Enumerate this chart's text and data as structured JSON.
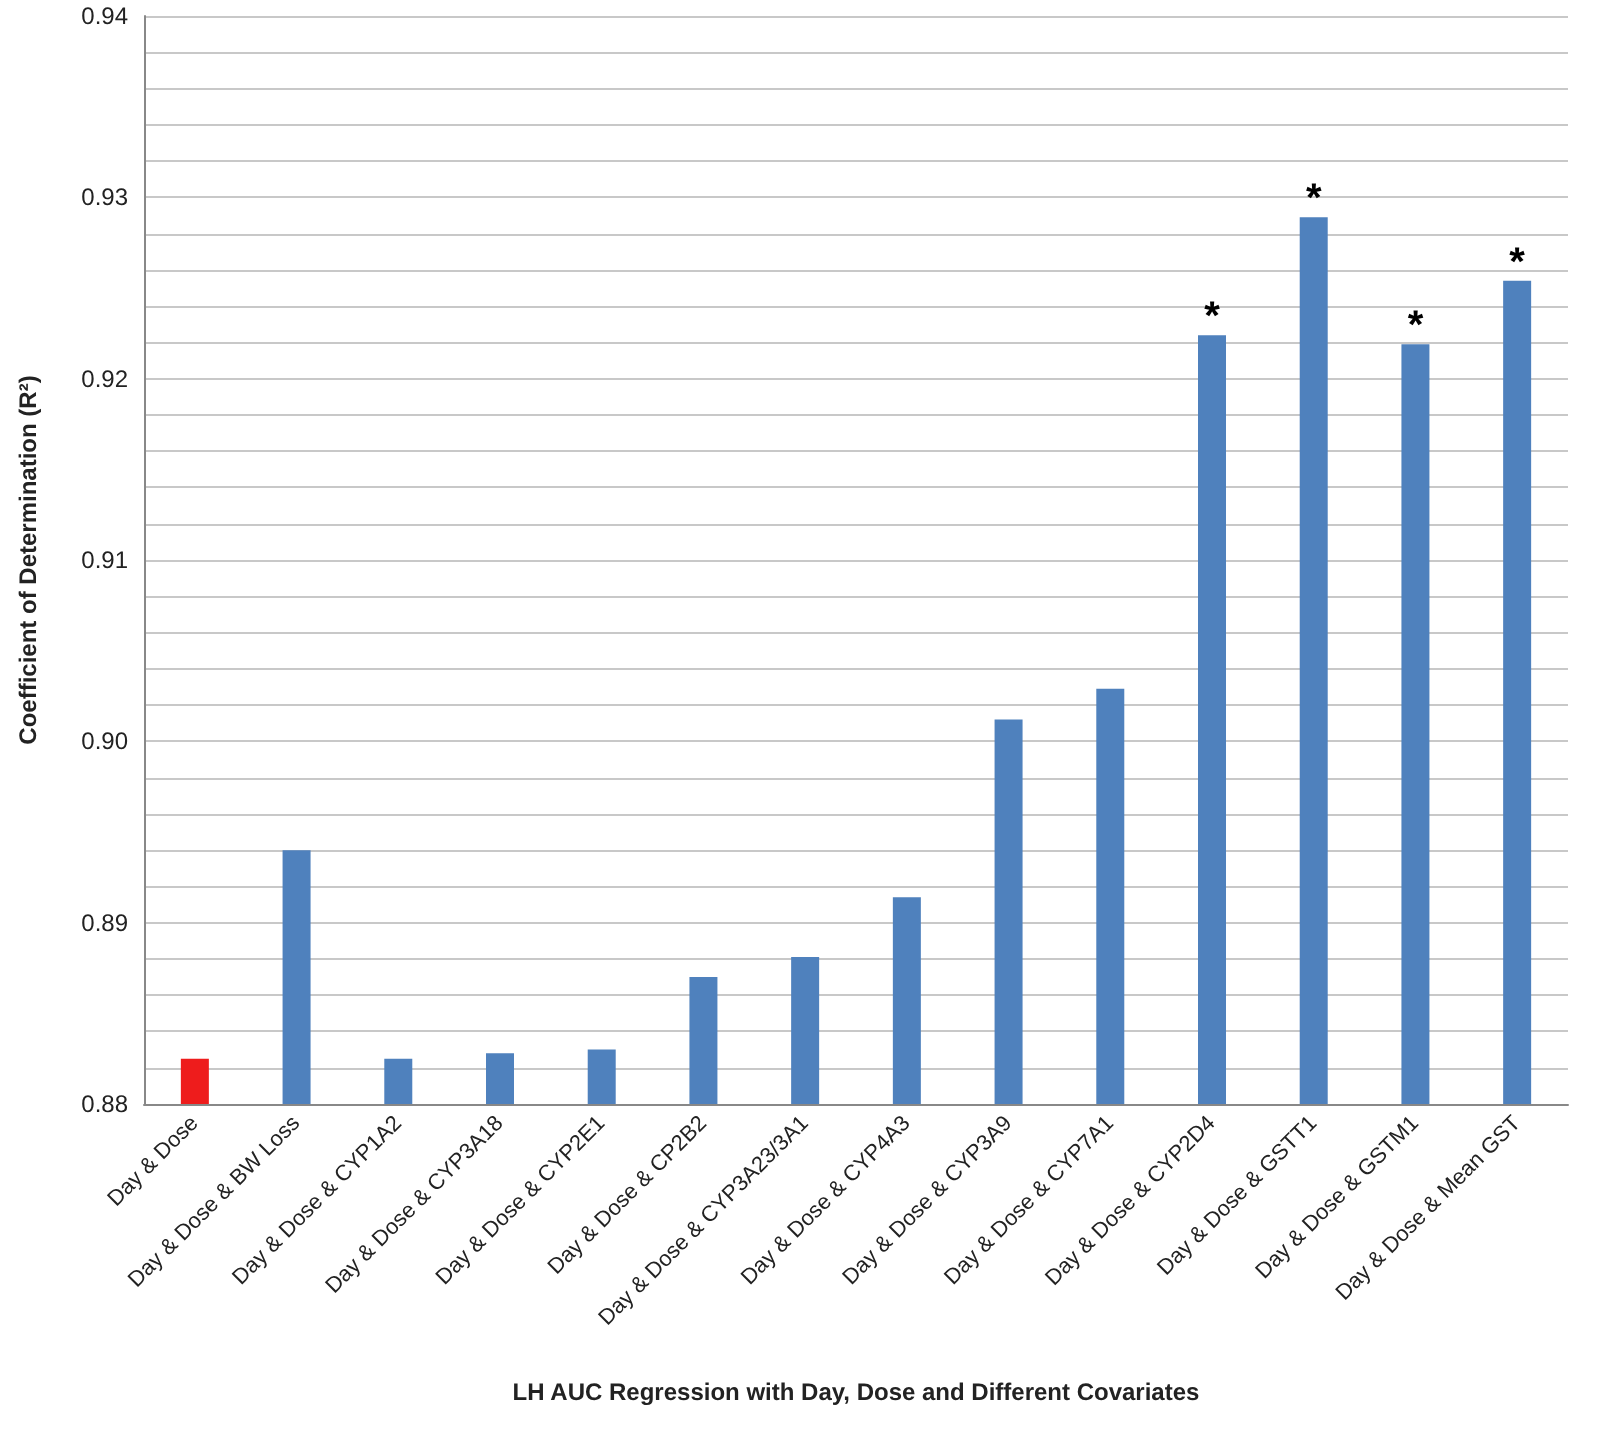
{
  "chart_data": {
    "type": "bar",
    "xlabel": "LH AUC Regression with Day, Dose and Different Covariates",
    "ylabel": "Coefficient of Determination (R²)",
    "categories": [
      "Day & Dose",
      "Day & Dose & BW Loss",
      "Day & Dose & CYP1A2",
      "Day & Dose & CYP3A18",
      "Day & Dose & CYP2E1",
      "Day & Dose & CP2B2",
      "Day & Dose & CYP3A23/3A1",
      "Day & Dose & CYP4A3",
      "Day & Dose & CYP3A9",
      "Day & Dose & CYP7A1",
      "Day & Dose & CYP2D4",
      "Day & Dose & GSTT1",
      "Day & Dose & GSTM1",
      "Day & Dose & Mean GST"
    ],
    "values": [
      0.8825,
      0.894,
      0.8825,
      0.8828,
      0.883,
      0.887,
      0.8881,
      0.8914,
      0.9012,
      0.9029,
      0.9224,
      0.9289,
      0.9219,
      0.9254
    ],
    "colors": [
      "#ee1c1c",
      "#4f81bd",
      "#4f81bd",
      "#4f81bd",
      "#4f81bd",
      "#4f81bd",
      "#4f81bd",
      "#4f81bd",
      "#4f81bd",
      "#4f81bd",
      "#4f81bd",
      "#4f81bd",
      "#4f81bd",
      "#4f81bd"
    ],
    "ylim": [
      0.88,
      0.94
    ],
    "yticks": [
      {
        "value": 0.88,
        "label": "0.88"
      },
      {
        "value": 0.882,
        "label": null
      },
      {
        "value": 0.884,
        "label": null
      },
      {
        "value": 0.886,
        "label": null
      },
      {
        "value": 0.888,
        "label": null
      },
      {
        "value": 0.89,
        "label": "0.89"
      },
      {
        "value": 0.892,
        "label": null
      },
      {
        "value": 0.894,
        "label": null
      },
      {
        "value": 0.896,
        "label": null
      },
      {
        "value": 0.898,
        "label": null
      },
      {
        "value": 0.9,
        "label": "0.90"
      },
      {
        "value": 0.902,
        "label": null
      },
      {
        "value": 0.904,
        "label": null
      },
      {
        "value": 0.906,
        "label": null
      },
      {
        "value": 0.908,
        "label": null
      },
      {
        "value": 0.91,
        "label": "0.91"
      },
      {
        "value": 0.912,
        "label": null
      },
      {
        "value": 0.914,
        "label": null
      },
      {
        "value": 0.916,
        "label": null
      },
      {
        "value": 0.918,
        "label": null
      },
      {
        "value": 0.92,
        "label": "0.92"
      },
      {
        "value": 0.922,
        "label": null
      },
      {
        "value": 0.924,
        "label": null
      },
      {
        "value": 0.926,
        "label": null
      },
      {
        "value": 0.928,
        "label": null
      },
      {
        "value": 0.93,
        "label": "0.93"
      },
      {
        "value": 0.932,
        "label": null
      },
      {
        "value": 0.934,
        "label": null
      },
      {
        "value": 0.936,
        "label": null
      },
      {
        "value": 0.938,
        "label": null
      },
      {
        "value": 0.94,
        "label": "0.94"
      }
    ],
    "grid": "y",
    "annotations": [
      {
        "text": "*",
        "x": "Day & Dose & CYP2D4",
        "y": 0.9224
      },
      {
        "text": "*",
        "x": "Day & Dose & GSTT1",
        "y": 0.9289
      },
      {
        "text": "*",
        "x": "Day & Dose & GSTM1",
        "y": 0.9219
      },
      {
        "text": "*",
        "x": "Day & Dose & Mean GST",
        "y": 0.9254
      }
    ]
  }
}
